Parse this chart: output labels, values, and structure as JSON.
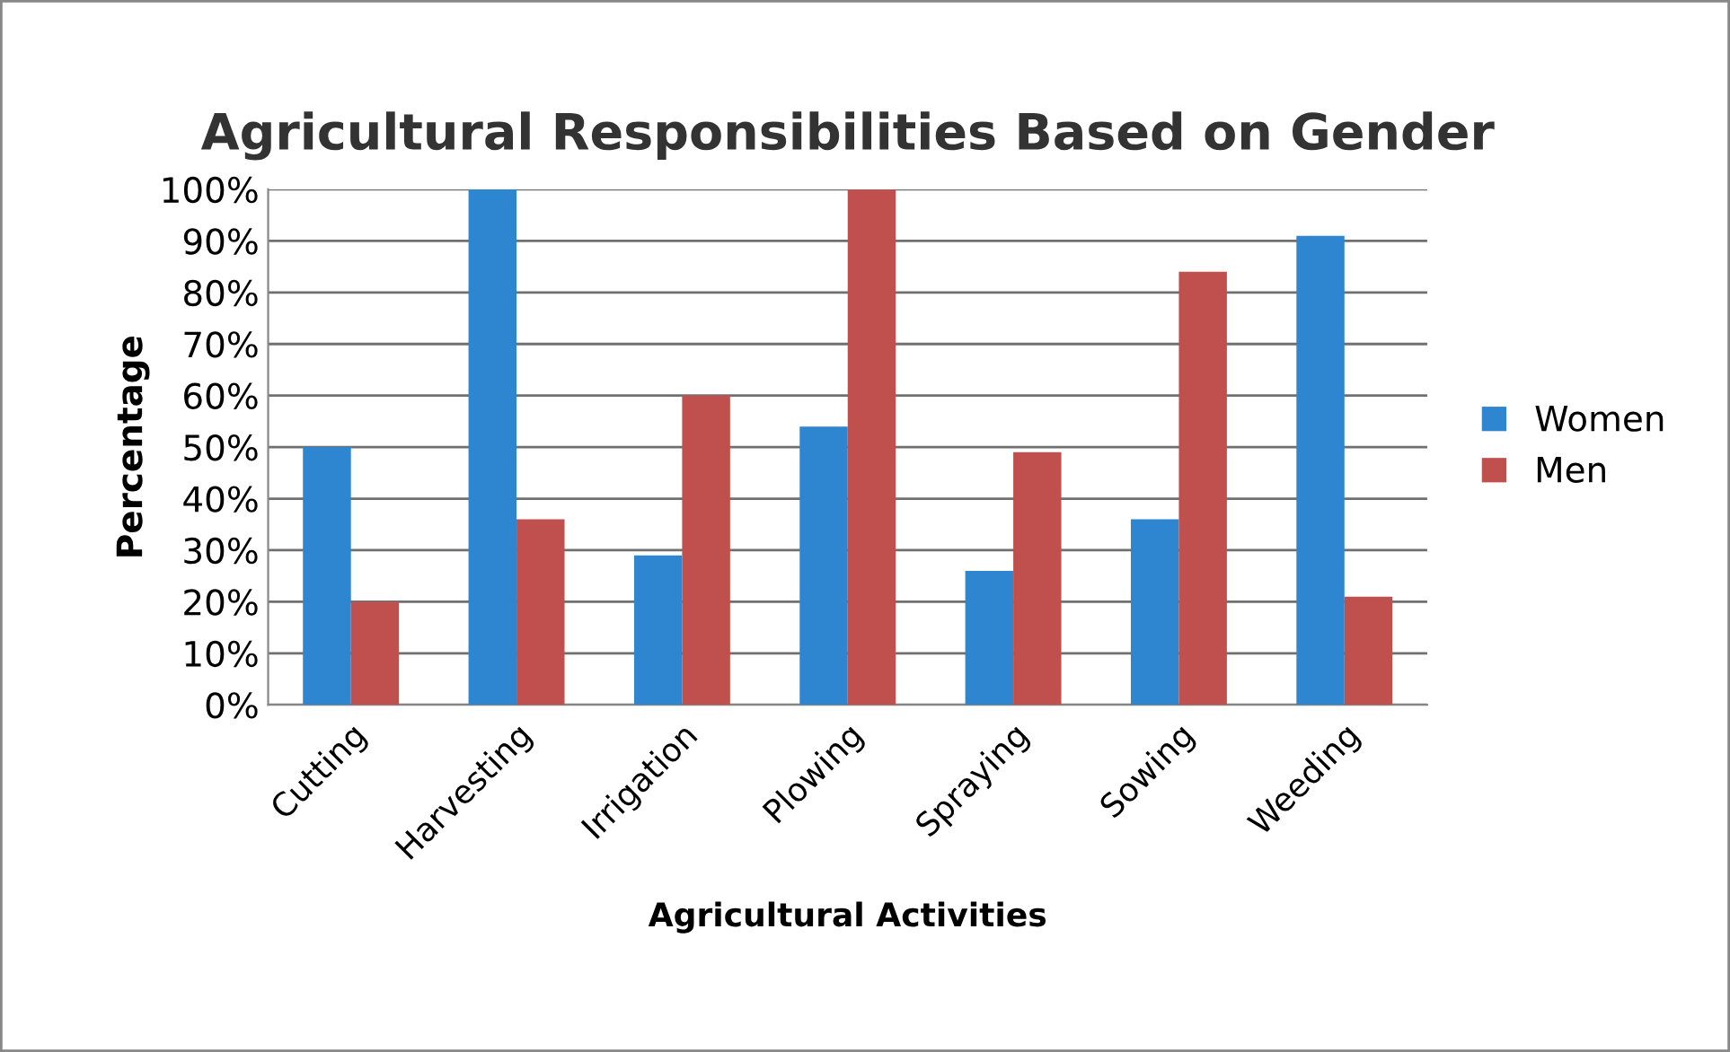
{
  "chart_data": {
    "type": "bar",
    "title": "Agricultural Responsibilities Based on Gender",
    "xlabel": "Agricultural Activities",
    "ylabel": "Percentage",
    "categories": [
      "Cutting",
      "Harvesting",
      "Irrigation",
      "Plowing",
      "Spraying",
      "Sowing",
      "Weeding"
    ],
    "series": [
      {
        "name": "Women",
        "color": "#2e86d0",
        "values": [
          50,
          100,
          29,
          54,
          26,
          36,
          91
        ]
      },
      {
        "name": "Men",
        "color": "#c0504d",
        "values": [
          20,
          36,
          60,
          100,
          49,
          84,
          21
        ]
      }
    ],
    "ylim": [
      0,
      100
    ],
    "yticks": [
      {
        "value": 0,
        "label": "0%"
      },
      {
        "value": 10,
        "label": "10%"
      },
      {
        "value": 20,
        "label": "20%"
      },
      {
        "value": 30,
        "label": "30%"
      },
      {
        "value": 40,
        "label": "40%"
      },
      {
        "value": 50,
        "label": "50%"
      },
      {
        "value": 60,
        "label": "60%"
      },
      {
        "value": 70,
        "label": "70%"
      },
      {
        "value": 80,
        "label": "80%"
      },
      {
        "value": 90,
        "label": "90%"
      },
      {
        "value": 100,
        "label": "100%"
      }
    ],
    "grid": "y",
    "legend": "right"
  }
}
